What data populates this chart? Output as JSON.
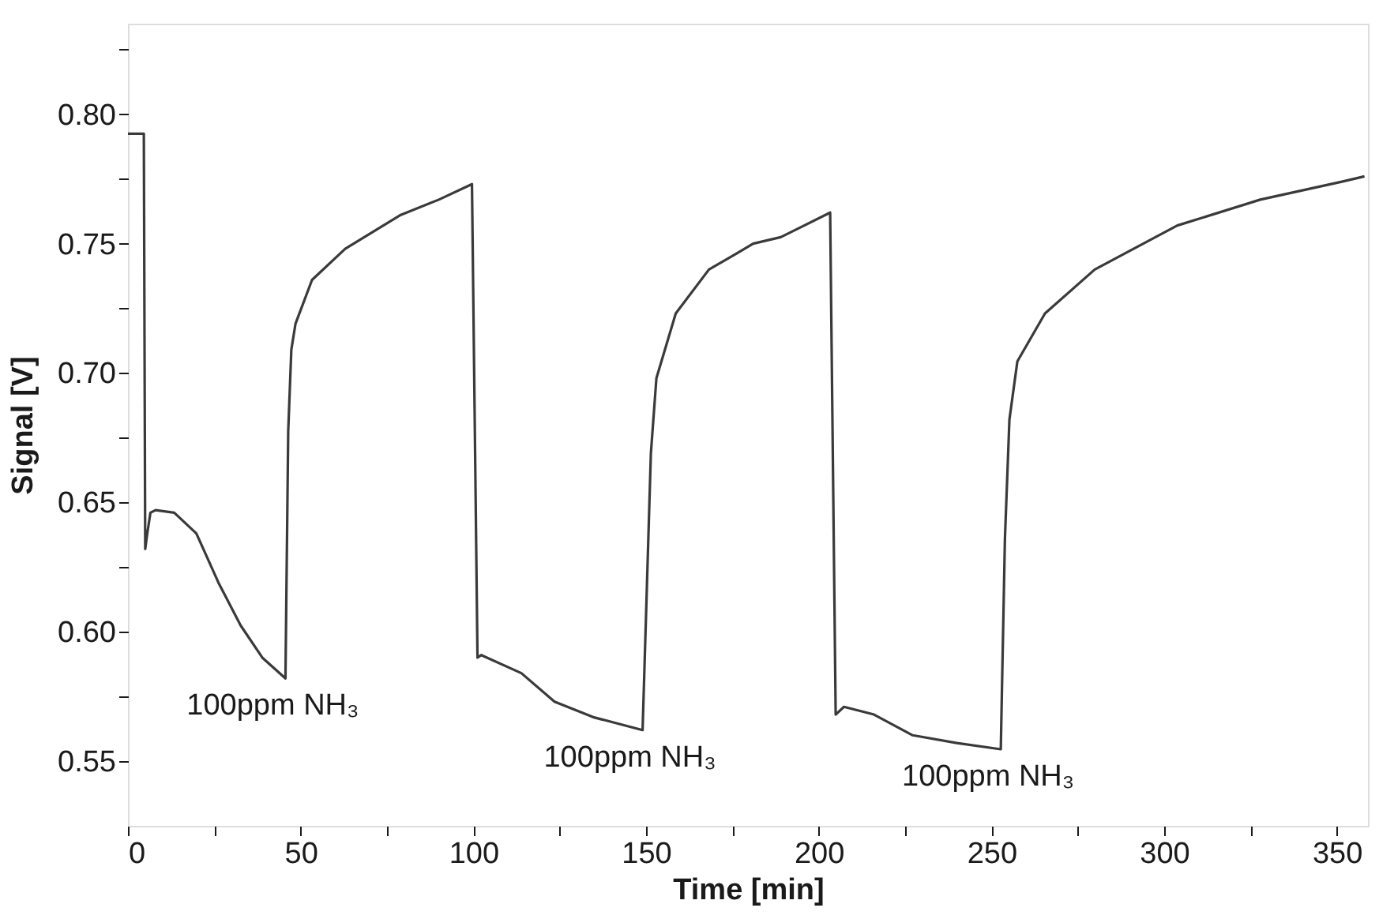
{
  "chart_data": {
    "type": "line",
    "xlabel": "Time [min]",
    "ylabel": "Signal [V]",
    "xlim": [
      0,
      359
    ],
    "ylim": [
      0.525,
      0.835
    ],
    "xticks": [
      0,
      {
        "value": 25,
        "label": null
      },
      50,
      {
        "value": 75,
        "label": null
      },
      100,
      {
        "value": 125,
        "label": null
      },
      150,
      {
        "value": 175,
        "label": null
      },
      200,
      {
        "value": 225,
        "label": null
      },
      250,
      {
        "value": 275,
        "label": null
      },
      300,
      {
        "value": 325,
        "label": null
      },
      350
    ],
    "yticks": [
      {
        "value": 0.55,
        "label": "0.55"
      },
      {
        "value": 0.575,
        "label": null
      },
      {
        "value": 0.6,
        "label": "0.60"
      },
      {
        "value": 0.625,
        "label": null
      },
      {
        "value": 0.65,
        "label": "0.65"
      },
      {
        "value": 0.675,
        "label": null
      },
      {
        "value": 0.7,
        "label": "0.70"
      },
      {
        "value": 0.725,
        "label": null
      },
      {
        "value": 0.75,
        "label": "0.75"
      },
      {
        "value": 0.775,
        "label": null
      },
      {
        "value": 0.8,
        "label": "0.80"
      },
      {
        "value": 0.825,
        "label": null
      }
    ],
    "grid": false,
    "marker": "none",
    "line_style": "solid",
    "series": [
      {
        "color": "#3a3a3a",
        "x": [
          0,
          4.6,
          5.0,
          5.6,
          6.5,
          8,
          13.4,
          19.8,
          26.2,
          32.6,
          38.9,
          45.6,
          46.4,
          47.3,
          48.5,
          53.3,
          62.9,
          78.8,
          90,
          99.6,
          101.2,
          102.3,
          113.9,
          123.5,
          134.7,
          149,
          151.4,
          153,
          158.6,
          168.2,
          176,
          181,
          189,
          203.3,
          204.9,
          207.3,
          216,
          227.2,
          240,
          252.7,
          253.9,
          255.2,
          257.5,
          265.5,
          279.9,
          303.8,
          327.8,
          351.7,
          358
        ],
        "values": [
          0.7925,
          0.7925,
          0.632,
          0.638,
          0.646,
          0.647,
          0.646,
          0.638,
          0.619,
          0.6025,
          0.59,
          0.582,
          0.6775,
          0.709,
          0.719,
          0.736,
          0.748,
          0.761,
          0.767,
          0.773,
          0.59,
          0.591,
          0.584,
          0.573,
          0.567,
          0.562,
          0.669,
          0.698,
          0.723,
          0.74,
          0.746,
          0.75,
          0.7525,
          0.762,
          0.568,
          0.571,
          0.568,
          0.56,
          0.557,
          0.5546,
          0.636,
          0.682,
          0.7045,
          0.723,
          0.74,
          0.757,
          0.767,
          0.774,
          0.776
        ]
      }
    ],
    "annotations": [
      "100ppm NH₃",
      "100ppm NH₃",
      "100ppm NH₃"
    ]
  }
}
